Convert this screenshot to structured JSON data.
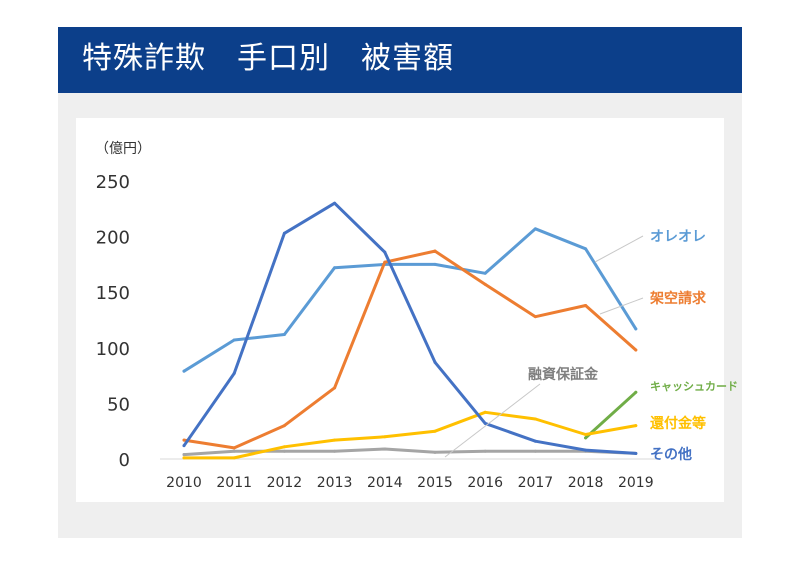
{
  "header": {
    "title": "特殊詐欺　手口別　被害額"
  },
  "chart_data": {
    "type": "line",
    "title": "特殊詐欺　手口別　被害額",
    "ylabel": "（億円）",
    "xlabel": "",
    "ylim": [
      0,
      250
    ],
    "yticks": [
      "0",
      "50",
      "100",
      "150",
      "200",
      "250"
    ],
    "categories": [
      "2010",
      "2011",
      "2012",
      "2013",
      "2014",
      "2015",
      "2016",
      "2017",
      "2018",
      "2019"
    ],
    "grid": false,
    "legend": "inline labels at right",
    "series": [
      {
        "name": "オレオレ",
        "color": "#5b9bd5",
        "values": [
          79,
          107,
          112,
          172,
          175,
          175,
          167,
          207,
          189,
          117
        ]
      },
      {
        "name": "架空請求",
        "color": "#ed7d31",
        "values": [
          17,
          10,
          30,
          64,
          177,
          187,
          157,
          128,
          138,
          98
        ]
      },
      {
        "name": "融資保証金",
        "color": "#a5a5a5",
        "values": [
          4,
          7,
          7,
          7,
          9,
          6,
          7,
          7,
          7,
          5
        ]
      },
      {
        "name": "キャッシュカード",
        "color": "#70ad47",
        "values": [
          null,
          null,
          null,
          null,
          null,
          null,
          null,
          null,
          19,
          60
        ]
      },
      {
        "name": "還付金等",
        "color": "#ffc000",
        "values": [
          1,
          1,
          11,
          17,
          20,
          25,
          42,
          36,
          22,
          30
        ]
      },
      {
        "name": "その他",
        "color": "#4472c4",
        "values": [
          12,
          77,
          203,
          230,
          186,
          87,
          32,
          16,
          8,
          5
        ]
      }
    ]
  }
}
